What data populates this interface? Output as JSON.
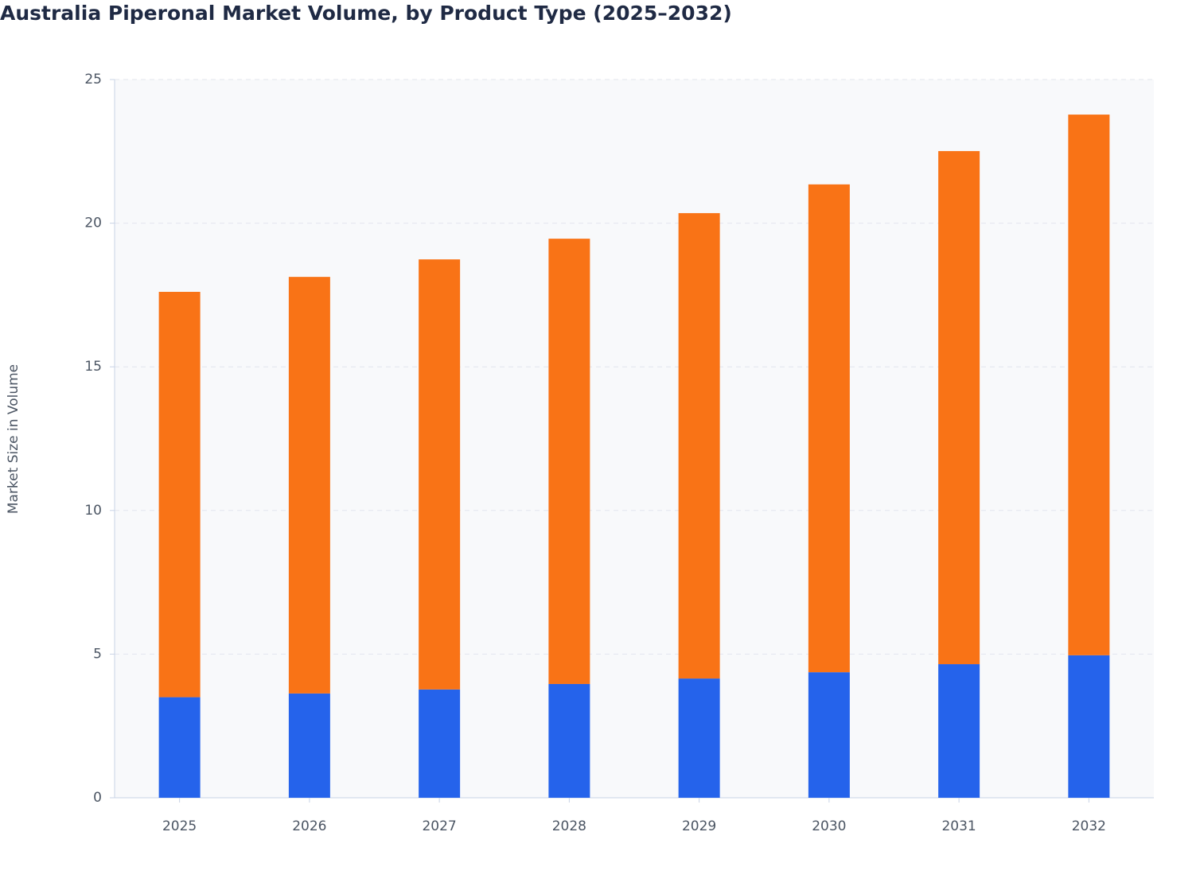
{
  "chart_data": {
    "type": "stacked-bar",
    "title": "Australia Piperonal Market Volume, by Product Type (2025–2032)",
    "y_label": "Market Size in Volume",
    "categories": [
      "2025",
      "2026",
      "2027",
      "2028",
      "2029",
      "2030",
      "2031",
      "2032"
    ],
    "series": [
      {
        "color": "#2563eb",
        "values": [
          3.5,
          3.63,
          3.77,
          3.96,
          4.15,
          4.37,
          4.65,
          4.96
        ]
      },
      {
        "color": "#f97316",
        "values": [
          14.11,
          14.5,
          14.97,
          15.5,
          16.2,
          16.98,
          17.86,
          18.82
        ]
      }
    ],
    "ylim": [
      0,
      25
    ],
    "yticks": [
      0,
      5,
      10,
      15,
      20,
      25
    ],
    "grid": true
  }
}
